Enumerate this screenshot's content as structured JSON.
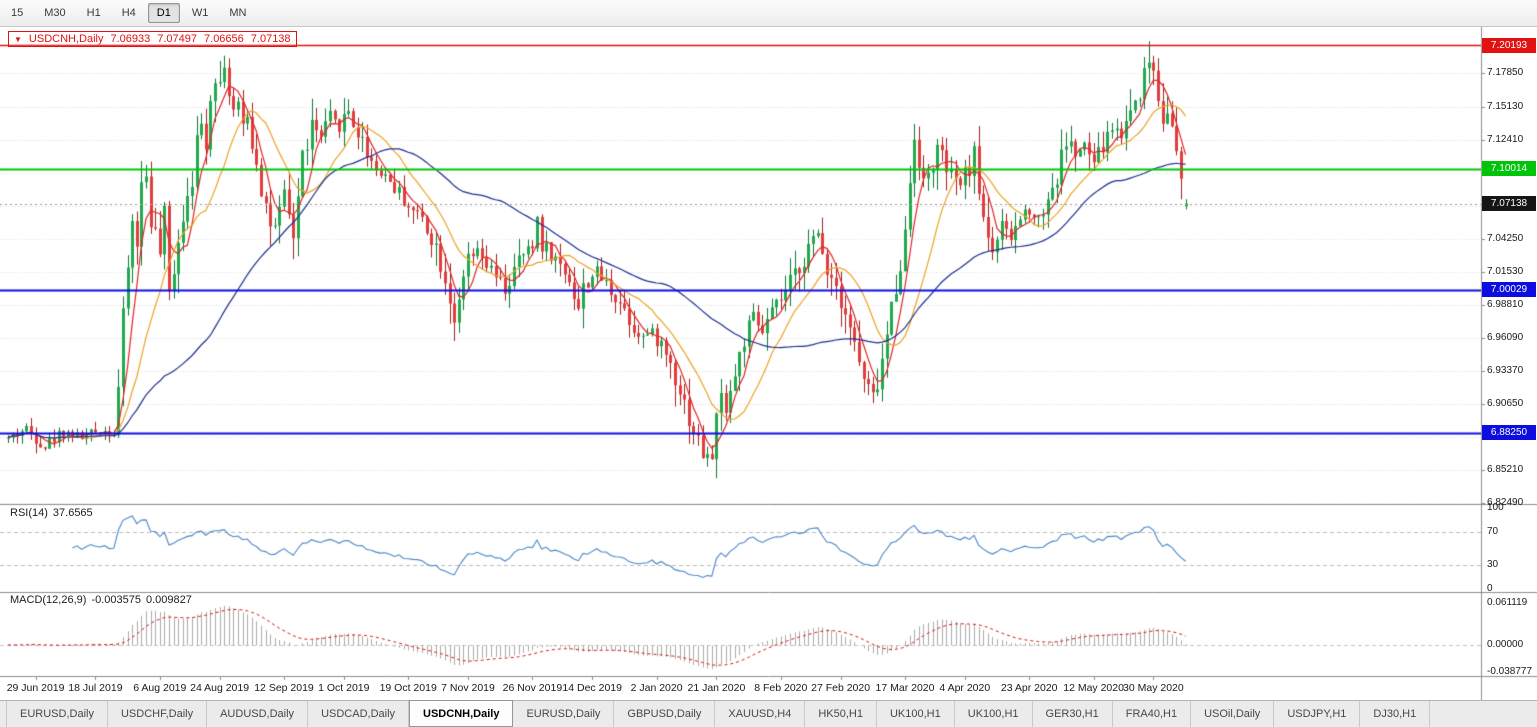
{
  "toolbar": {
    "timeframes": [
      {
        "label": "15",
        "active": false
      },
      {
        "label": "M30",
        "active": false
      },
      {
        "label": "H1",
        "active": false
      },
      {
        "label": "H4",
        "active": false
      },
      {
        "label": "D1",
        "active": true
      },
      {
        "label": "W1",
        "active": false
      },
      {
        "label": "MN",
        "active": false
      }
    ]
  },
  "chart": {
    "title": {
      "symbol": "USDCNH,Daily",
      "open": "7.06933",
      "high": "7.07497",
      "low": "7.06656",
      "close": "7.07138"
    },
    "rsi_label": {
      "name": "RSI(14)",
      "value": "37.6565"
    },
    "macd_label": {
      "name": "MACD(12,26,9)",
      "value1": "-0.003575",
      "value2": "0.009827"
    }
  },
  "chart_data": {
    "type": "candlestick",
    "symbol": "USDCNH",
    "timeframe": "Daily",
    "price_pane": {
      "ylim": [
        6.8239,
        7.2168
      ],
      "ticks": [
        {
          "v": 7.1785,
          "label": "7.17850"
        },
        {
          "v": 7.1513,
          "label": "7.15130"
        },
        {
          "v": 7.1241,
          "label": "7.12410"
        },
        {
          "v": 7.0969,
          "label": ""
        },
        {
          "v": 7.0697,
          "label": ""
        },
        {
          "v": 7.0425,
          "label": "7.04250"
        },
        {
          "v": 7.0153,
          "label": "7.01530"
        },
        {
          "v": 6.9881,
          "label": "6.98810"
        },
        {
          "v": 6.9609,
          "label": "6.96090"
        },
        {
          "v": 6.9337,
          "label": "6.93370"
        },
        {
          "v": 6.9065,
          "label": "6.90650"
        },
        {
          "v": 6.8793,
          "label": ""
        },
        {
          "v": 6.8521,
          "label": "6.85210"
        },
        {
          "v": 6.8249,
          "label": "6.82490"
        }
      ],
      "levels": [
        {
          "v": 7.20193,
          "label": "7.20193",
          "color": "#e31212",
          "width": 1.5
        },
        {
          "v": 7.10014,
          "label": "7.10014",
          "color": "#00c40a",
          "width": 2
        },
        {
          "v": 7.00029,
          "label": "7.00029",
          "color": "#0d0de0",
          "width": 2
        },
        {
          "v": 6.8825,
          "label": "6.88250",
          "color": "#0d0de0",
          "width": 2
        }
      ],
      "current_price": {
        "v": 7.07138,
        "label": "7.07138",
        "color": "#151515"
      },
      "candle_up_color": "#21a94e",
      "candle_up_border": "#0c7a35",
      "candle_down_color": "#e23d3d",
      "candle_down_border": "#a81f1f",
      "ma_lines": [
        {
          "color": "#e02525",
          "period": 5
        },
        {
          "color": "#eca227",
          "period": 13
        },
        {
          "color": "#1e2f8f",
          "period": 45
        }
      ]
    },
    "x_axis": {
      "dates": [
        {
          "i": 6,
          "label": "29 Jun 2019"
        },
        {
          "i": 19,
          "label": "18 Jul 2019"
        },
        {
          "i": 33,
          "label": "6 Aug 2019"
        },
        {
          "i": 46,
          "label": "24 Aug 2019"
        },
        {
          "i": 60,
          "label": "12 Sep 2019"
        },
        {
          "i": 73,
          "label": "1 Oct 2019"
        },
        {
          "i": 87,
          "label": "19 Oct 2019"
        },
        {
          "i": 100,
          "label": "7 Nov 2019"
        },
        {
          "i": 114,
          "label": "26 Nov 2019"
        },
        {
          "i": 127,
          "label": "14 Dec 2019"
        },
        {
          "i": 141,
          "label": "2 Jan 2020"
        },
        {
          "i": 154,
          "label": "21 Jan 2020"
        },
        {
          "i": 168,
          "label": "8 Feb 2020"
        },
        {
          "i": 181,
          "label": "27 Feb 2020"
        },
        {
          "i": 195,
          "label": "17 Mar 2020"
        },
        {
          "i": 208,
          "label": "4 Apr 2020"
        },
        {
          "i": 222,
          "label": "23 Apr 2020"
        },
        {
          "i": 236,
          "label": "12 May 2020"
        },
        {
          "i": 249,
          "label": "30 May 2020"
        }
      ]
    },
    "price_path": [
      [
        0,
        6.878
      ],
      [
        4,
        6.886
      ],
      [
        8,
        6.872
      ],
      [
        12,
        6.884
      ],
      [
        16,
        6.879
      ],
      [
        20,
        6.885
      ],
      [
        23,
        6.882
      ],
      [
        24,
        6.92
      ],
      [
        25,
        6.975
      ],
      [
        26,
        7.02
      ],
      [
        27,
        7.055
      ],
      [
        28,
        7.04
      ],
      [
        29,
        7.085
      ],
      [
        30,
        7.095
      ],
      [
        31,
        7.06
      ],
      [
        32,
        7.045
      ],
      [
        33,
        7.03
      ],
      [
        34,
        7.06
      ],
      [
        35,
        6.995
      ],
      [
        36,
        7.02
      ],
      [
        37,
        7.045
      ],
      [
        38,
        7.06
      ],
      [
        39,
        7.085
      ],
      [
        40,
        7.095
      ],
      [
        41,
        7.12
      ],
      [
        42,
        7.135
      ],
      [
        43,
        7.125
      ],
      [
        44,
        7.16
      ],
      [
        45,
        7.18
      ],
      [
        46,
        7.17
      ],
      [
        47,
        7.19
      ],
      [
        48,
        7.162
      ],
      [
        49,
        7.145
      ],
      [
        50,
        7.15
      ],
      [
        51,
        7.135
      ],
      [
        52,
        7.148
      ],
      [
        53,
        7.12
      ],
      [
        54,
        7.11
      ],
      [
        55,
        7.085
      ],
      [
        56,
        7.07
      ],
      [
        57,
        7.055
      ],
      [
        58,
        7.048
      ],
      [
        60,
        7.075
      ],
      [
        62,
        7.045
      ],
      [
        64,
        7.11
      ],
      [
        66,
        7.135
      ],
      [
        68,
        7.125
      ],
      [
        70,
        7.14
      ],
      [
        72,
        7.135
      ],
      [
        74,
        7.148
      ],
      [
        76,
        7.13
      ],
      [
        78,
        7.115
      ],
      [
        80,
        7.1
      ],
      [
        82,
        7.095
      ],
      [
        84,
        7.085
      ],
      [
        86,
        7.075
      ],
      [
        88,
        7.065
      ],
      [
        90,
        7.06
      ],
      [
        92,
        7.045
      ],
      [
        94,
        7.025
      ],
      [
        96,
        6.995
      ],
      [
        97,
        6.978
      ],
      [
        98,
        6.985
      ],
      [
        100,
        7.025
      ],
      [
        102,
        7.03
      ],
      [
        104,
        7.02
      ],
      [
        106,
        7.01
      ],
      [
        108,
        7.0
      ],
      [
        110,
        7.015
      ],
      [
        112,
        7.03
      ],
      [
        114,
        7.035
      ],
      [
        115,
        7.06
      ],
      [
        116,
        7.04
      ],
      [
        118,
        7.03
      ],
      [
        120,
        7.02
      ],
      [
        122,
        7.01
      ],
      [
        124,
        6.985
      ],
      [
        125,
        7.0
      ],
      [
        126,
        7.01
      ],
      [
        128,
        7.015
      ],
      [
        130,
        7.005
      ],
      [
        132,
        6.995
      ],
      [
        134,
        6.985
      ],
      [
        136,
        6.97
      ],
      [
        138,
        6.962
      ],
      [
        140,
        6.965
      ],
      [
        142,
        6.955
      ],
      [
        144,
        6.94
      ],
      [
        146,
        6.92
      ],
      [
        148,
        6.895
      ],
      [
        150,
        6.875
      ],
      [
        152,
        6.858
      ],
      [
        153,
        6.865
      ],
      [
        154,
        6.895
      ],
      [
        155,
        6.91
      ],
      [
        156,
        6.905
      ],
      [
        158,
        6.93
      ],
      [
        160,
        6.96
      ],
      [
        162,
        6.975
      ],
      [
        164,
        6.965
      ],
      [
        166,
        6.98
      ],
      [
        168,
        6.992
      ],
      [
        170,
        7.005
      ],
      [
        172,
        7.02
      ],
      [
        174,
        7.035
      ],
      [
        176,
        7.045
      ],
      [
        178,
        7.02
      ],
      [
        180,
        7.005
      ],
      [
        182,
        6.985
      ],
      [
        184,
        6.955
      ],
      [
        186,
        6.925
      ],
      [
        188,
        6.91
      ],
      [
        190,
        6.94
      ],
      [
        192,
        6.985
      ],
      [
        194,
        7.025
      ],
      [
        195,
        7.045
      ],
      [
        196,
        7.09
      ],
      [
        197,
        7.13
      ],
      [
        198,
        7.11
      ],
      [
        199,
        7.085
      ],
      [
        200,
        7.095
      ],
      [
        202,
        7.115
      ],
      [
        204,
        7.1
      ],
      [
        206,
        7.085
      ],
      [
        208,
        7.095
      ],
      [
        210,
        7.11
      ],
      [
        212,
        7.06
      ],
      [
        214,
        7.035
      ],
      [
        216,
        7.05
      ],
      [
        218,
        7.042
      ],
      [
        220,
        7.06
      ],
      [
        222,
        7.068
      ],
      [
        224,
        7.058
      ],
      [
        226,
        7.078
      ],
      [
        228,
        7.092
      ],
      [
        230,
        7.125
      ],
      [
        232,
        7.112
      ],
      [
        234,
        7.118
      ],
      [
        236,
        7.105
      ],
      [
        238,
        7.118
      ],
      [
        240,
        7.135
      ],
      [
        242,
        7.128
      ],
      [
        244,
        7.15
      ],
      [
        246,
        7.165
      ],
      [
        248,
        7.19
      ],
      [
        249,
        7.182
      ],
      [
        250,
        7.16
      ],
      [
        251,
        7.145
      ],
      [
        252,
        7.152
      ],
      [
        253,
        7.13
      ],
      [
        254,
        7.112
      ],
      [
        255,
        7.085
      ],
      [
        256,
        7.07138
      ]
    ],
    "last_candle": {
      "o": 7.06933,
      "h": 7.07497,
      "l": 7.06656,
      "c": 7.07138
    },
    "rsi_pane": {
      "ylim": [
        -3.7,
        105
      ],
      "period": 14,
      "levels": [
        70,
        30
      ],
      "axis_labels": [
        {
          "v": 100,
          "label": "100"
        },
        {
          "v": 70,
          "label": "70"
        },
        {
          "v": 30,
          "label": "30"
        },
        {
          "v": 0,
          "label": "0"
        }
      ],
      "line_color": "#4a86c8"
    },
    "macd_pane": {
      "ylim": [
        -0.0451,
        0.0771
      ],
      "fast": 12,
      "slow": 26,
      "signal": 9,
      "axis_labels": [
        {
          "v": 0.061119,
          "label": "0.061119"
        },
        {
          "v": 0,
          "label": "0.00000"
        },
        {
          "v": -0.038777,
          "label": "-0.038777"
        }
      ],
      "histogram_color": "#ababab",
      "signal_color": "#d01818"
    }
  },
  "tabs": [
    {
      "label": "EURUSD,Daily",
      "active": false
    },
    {
      "label": "USDCHF,Daily",
      "active": false
    },
    {
      "label": "AUDUSD,Daily",
      "active": false
    },
    {
      "label": "USDCAD,Daily",
      "active": false
    },
    {
      "label": "USDCNH,Daily",
      "active": true
    },
    {
      "label": "EURUSD,Daily",
      "active": false
    },
    {
      "label": "GBPUSD,Daily",
      "active": false
    },
    {
      "label": "XAUUSD,H4",
      "active": false
    },
    {
      "label": "HK50,H1",
      "active": false
    },
    {
      "label": "UK100,H1",
      "active": false
    },
    {
      "label": "UK100,H1",
      "active": false
    },
    {
      "label": "GER30,H1",
      "active": false
    },
    {
      "label": "FRA40,H1",
      "active": false
    },
    {
      "label": "USOil,Daily",
      "active": false
    },
    {
      "label": "USDJPY,H1",
      "active": false
    },
    {
      "label": "DJ30,H1",
      "active": false
    }
  ]
}
